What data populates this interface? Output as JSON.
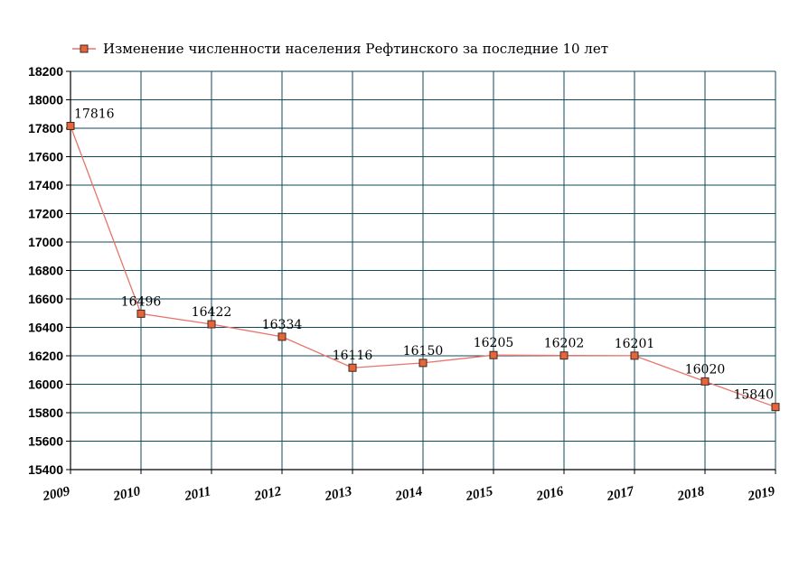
{
  "chart_data": {
    "type": "line",
    "legend": {
      "text": "Изменение численности населения Рефтинского за последние 10 лет",
      "position": "top-left"
    },
    "title": "",
    "xlabel": "",
    "ylabel": "",
    "categories": [
      "2009",
      "2010",
      "2011",
      "2012",
      "2013",
      "2014",
      "2015",
      "2016",
      "2017",
      "2018",
      "2019"
    ],
    "series": [
      {
        "name": "Изменение численности населения Рефтинского за последние 10 лет",
        "values": [
          17816,
          16496,
          16422,
          16334,
          16116,
          16150,
          16205,
          16202,
          16201,
          16020,
          15840
        ],
        "labels": [
          "17816",
          "16496",
          "16422",
          "16334",
          "16116",
          "16150",
          "16205",
          "16202",
          "16201",
          "16020",
          "15840"
        ]
      }
    ],
    "ylim": [
      15400,
      18200
    ],
    "yticks": [
      "15400",
      "15600",
      "15800",
      "16000",
      "16200",
      "16400",
      "16600",
      "16800",
      "17000",
      "17200",
      "17400",
      "17600",
      "17800",
      "18000",
      "18200"
    ],
    "grid": true,
    "colors": {
      "line": "#e8746a",
      "marker_fill": "#e8643a",
      "marker_stroke": "#3a2a20",
      "grid": "#0d4a5a",
      "axis": "#000000"
    }
  }
}
